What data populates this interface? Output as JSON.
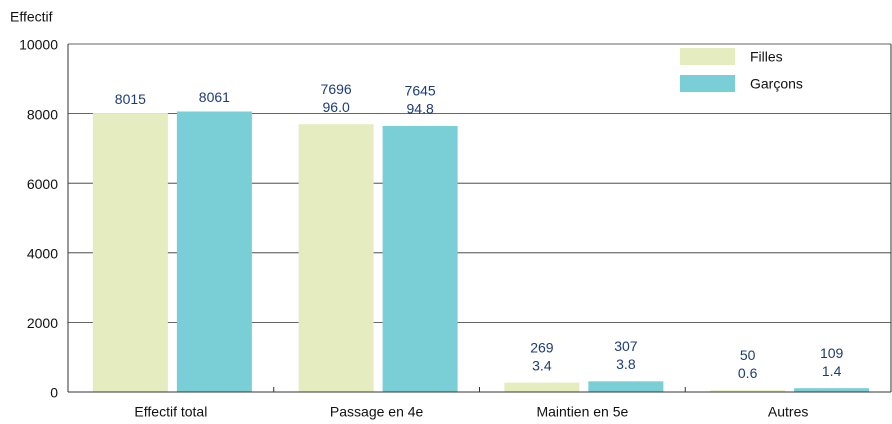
{
  "chart_data": {
    "type": "bar",
    "y_label": "Effectif",
    "categories": [
      "Effectif total",
      "Passage en 4e",
      "Maintien en 5e",
      "Autres"
    ],
    "series": [
      {
        "name": "Filles",
        "color": "#e5ecc0",
        "values": [
          8015,
          7696,
          269,
          50
        ],
        "percent_labels": [
          null,
          "96.0",
          "3.4",
          "0.6"
        ]
      },
      {
        "name": "Garçons",
        "color": "#7acfd6",
        "values": [
          8061,
          7645,
          307,
          109
        ],
        "percent_labels": [
          null,
          "94.8",
          "3.8",
          "1.4"
        ]
      }
    ],
    "ylim": [
      0,
      10000
    ],
    "yticks": [
      0,
      2000,
      4000,
      6000,
      8000,
      10000
    ],
    "grid": true,
    "legend": "top-right"
  }
}
